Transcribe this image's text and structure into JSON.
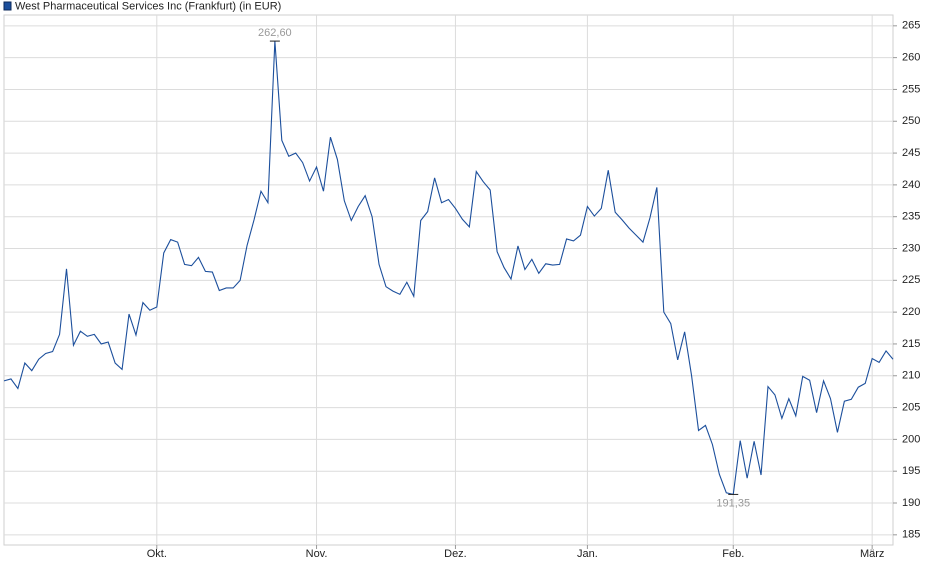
{
  "chart_data": {
    "type": "line",
    "title": "West Pharmaceutical Services Inc (Frankfurt) (in EUR)",
    "categories": [
      null,
      null,
      null,
      null,
      null,
      null,
      null,
      null,
      null,
      null,
      null,
      null,
      null,
      null,
      null,
      null,
      null,
      null,
      null,
      null,
      null,
      null,
      "Okt.",
      null,
      null,
      null,
      null,
      null,
      null,
      null,
      null,
      null,
      null,
      null,
      null,
      null,
      null,
      null,
      null,
      null,
      null,
      null,
      null,
      null,
      null,
      "Nov.",
      null,
      null,
      null,
      null,
      null,
      null,
      null,
      null,
      null,
      null,
      null,
      null,
      null,
      null,
      null,
      null,
      null,
      null,
      null,
      "Dez.",
      null,
      null,
      null,
      null,
      null,
      null,
      null,
      null,
      null,
      null,
      null,
      null,
      null,
      null,
      null,
      null,
      null,
      null,
      "Jan.",
      null,
      null,
      null,
      null,
      null,
      null,
      null,
      null,
      null,
      null,
      null,
      null,
      null,
      null,
      null,
      null,
      null,
      null,
      null,
      null,
      "Feb.",
      null,
      null,
      null,
      null,
      null,
      null,
      null,
      null,
      null,
      null,
      null,
      null,
      null,
      null,
      null,
      null,
      null,
      null,
      null,
      "März",
      null,
      null,
      null
    ],
    "series": [
      {
        "name": "West Pharmaceutical Services Inc (Frankfurt) (in EUR)",
        "color": "#1c4f9c",
        "values": [
          209.2,
          209.5,
          208,
          212,
          210.8,
          212.6,
          213.5,
          213.8,
          216.5,
          226.8,
          214.8,
          217,
          216.2,
          216.5,
          215,
          215.3,
          212,
          211,
          219.7,
          216.4,
          221.5,
          220.3,
          220.8,
          229.3,
          231.4,
          231,
          227.5,
          227.3,
          228.6,
          226.4,
          226.3,
          223.4,
          223.8,
          223.8,
          225,
          230.5,
          234.5,
          239,
          237.2,
          262.6,
          247,
          244.5,
          245,
          243.5,
          240.6,
          242.8,
          239,
          247.5,
          244,
          237.5,
          234.4,
          236.6,
          238.3,
          235,
          227.5,
          224,
          223.3,
          222.8,
          224.7,
          222.5,
          234.4,
          235.8,
          241.1,
          237.2,
          237.7,
          236.3,
          234.6,
          233.4,
          242.1,
          240.5,
          239.2,
          229.5,
          227,
          225.2,
          230.4,
          226.7,
          228.3,
          226.1,
          227.6,
          227.4,
          227.5,
          231.5,
          231.2,
          232.1,
          236.6,
          235.1,
          236.3,
          242.3,
          235.7,
          234.5,
          233.2,
          232.1,
          231,
          234.8,
          239.6,
          220,
          218.2,
          212.5,
          216.9,
          210,
          201.4,
          202.2,
          199.2,
          194.5,
          191.6,
          191.35,
          199.8,
          193.9,
          199.7,
          194.4,
          208.3,
          207,
          203.3,
          206.4,
          203.7,
          209.9,
          209.3,
          204.2,
          209.2,
          206.4,
          201.1,
          206,
          206.3,
          208.2,
          208.8,
          212.7,
          212.1,
          213.9,
          212.6
        ],
        "value_labels": [
          null,
          null,
          null,
          null,
          null,
          null,
          null,
          null,
          null,
          null,
          null,
          null,
          null,
          null,
          null,
          null,
          null,
          null,
          null,
          null,
          null,
          null,
          null,
          null,
          null,
          null,
          null,
          null,
          null,
          null,
          null,
          null,
          null,
          null,
          null,
          null,
          null,
          null,
          null,
          "262,60",
          null,
          null,
          null,
          null,
          null,
          null,
          null,
          null,
          null,
          null,
          null,
          null,
          null,
          null,
          null,
          null,
          null,
          null,
          null,
          null,
          null,
          null,
          null,
          null,
          null,
          null,
          null,
          null,
          null,
          null,
          null,
          null,
          null,
          null,
          null,
          null,
          null,
          null,
          null,
          null,
          null,
          null,
          null,
          null,
          null,
          null,
          null,
          null,
          null,
          null,
          null,
          null,
          null,
          null,
          null,
          null,
          null,
          null,
          null,
          null,
          null,
          null,
          null,
          null,
          null,
          "191,35",
          null,
          null,
          null,
          null,
          null,
          null,
          null,
          null,
          null,
          null,
          null,
          null,
          null,
          null,
          null,
          null,
          null,
          null,
          null,
          null,
          null,
          null,
          null
        ]
      }
    ],
    "ylim": [
      183.4,
      266.7
    ],
    "yticks": [
      185,
      190,
      195,
      200,
      205,
      210,
      215,
      220,
      225,
      230,
      235,
      240,
      245,
      250,
      255,
      260,
      265
    ],
    "grid": true
  }
}
